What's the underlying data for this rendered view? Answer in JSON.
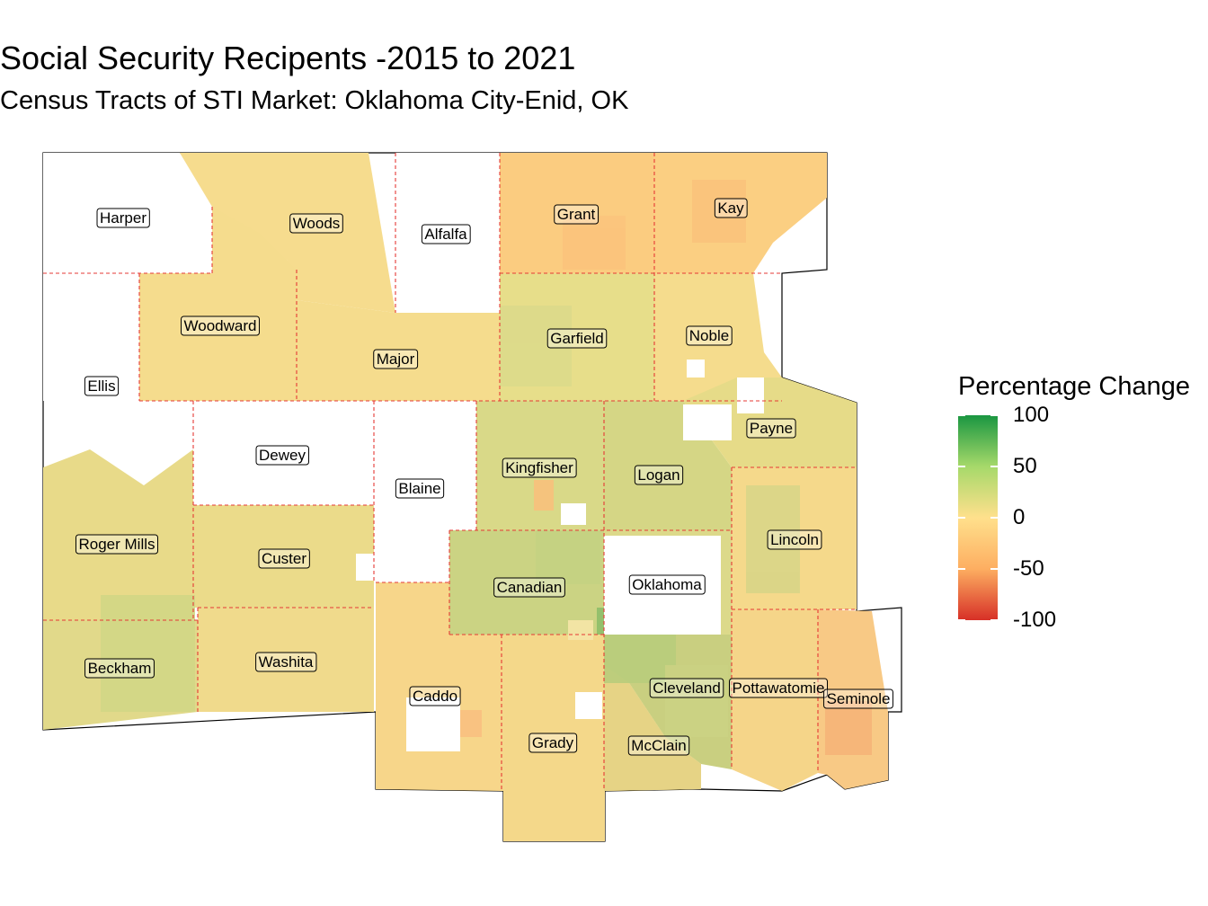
{
  "title": "Social Security Recipents -2015 to 2021",
  "subtitle": "Census Tracts of STI Market: Oklahoma City-Enid, OK",
  "legend": {
    "title": "Percentage Change",
    "ticks": [
      "100",
      "50",
      "0",
      "-50",
      "-100"
    ],
    "scale_min": -100,
    "scale_max": 100,
    "colors": {
      "high": "#1a9641",
      "mid_high": "#a6d96a",
      "mid": "#ffe08c",
      "mid_low": "#fdae61",
      "low": "#d73027"
    }
  },
  "counties": [
    {
      "name": "Harper",
      "fill": "#ffffff"
    },
    {
      "name": "Woods",
      "fill": "#f6dc8e"
    },
    {
      "name": "Alfalfa",
      "fill": "#ffffff"
    },
    {
      "name": "Grant",
      "fill": "#fbcc80"
    },
    {
      "name": "Kay",
      "fill": "#fbcf82"
    },
    {
      "name": "Woodward",
      "fill": "#f5dc8d"
    },
    {
      "name": "Ellis",
      "fill": "#ffffff"
    },
    {
      "name": "Major",
      "fill": "#f5dc8d"
    },
    {
      "name": "Garfield",
      "fill": "#e7de8a"
    },
    {
      "name": "Noble",
      "fill": "#f5dc8d"
    },
    {
      "name": "Dewey",
      "fill": "#ffffff"
    },
    {
      "name": "Blaine",
      "fill": "#ffffff"
    },
    {
      "name": "Kingfisher",
      "fill": "#d9d988"
    },
    {
      "name": "Logan",
      "fill": "#d5d685"
    },
    {
      "name": "Payne",
      "fill": "#e6db88"
    },
    {
      "name": "Roger Mills",
      "fill": "#e8da89"
    },
    {
      "name": "Custer",
      "fill": "#ebdb8a"
    },
    {
      "name": "Lincoln",
      "fill": "#f5d98b"
    },
    {
      "name": "Canadian",
      "fill": "#cbd383"
    },
    {
      "name": "Oklahoma",
      "fill": "#dcd98a"
    },
    {
      "name": "Beckham",
      "fill": "#e1d98a"
    },
    {
      "name": "Washita",
      "fill": "#f0da8c"
    },
    {
      "name": "Caddo",
      "fill": "#f7d68a"
    },
    {
      "name": "Cleveland",
      "fill": "#c9cf80"
    },
    {
      "name": "Pottawatomie",
      "fill": "#f5d589"
    },
    {
      "name": "Seminole",
      "fill": "#f8c985"
    },
    {
      "name": "Grady",
      "fill": "#f4d88a"
    },
    {
      "name": "McClain",
      "fill": "#e6d385"
    }
  ]
}
